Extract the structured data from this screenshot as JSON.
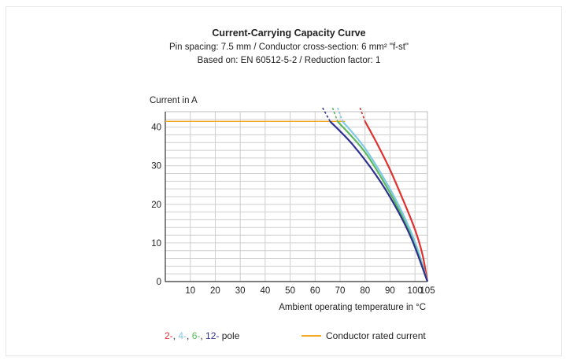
{
  "chart_data": {
    "type": "line",
    "title": "Current-Carrying Capacity Curve",
    "subtitle_lines": [
      "Pin spacing: 7.5 mm / Conductor cross-section: 6 mm² \"f-st\"",
      "Based on: EN 60512-5-2 / Reduction factor: 1"
    ],
    "ylabel": "Current in A",
    "xlabel": "Ambient operating temperature in °C",
    "xlim": [
      0,
      105
    ],
    "ylim": [
      0,
      44
    ],
    "xticks": [
      10,
      20,
      30,
      40,
      50,
      60,
      70,
      80,
      90,
      100,
      105
    ],
    "yticks": [
      0,
      10,
      20,
      30,
      40
    ],
    "grid": true,
    "rated_current": {
      "name": "Conductor rated current",
      "value": 41.5,
      "color": "#f5a623"
    },
    "series": [
      {
        "label": "2-",
        "color": "#e0312e",
        "solid": [
          [
            80,
            41.5
          ],
          [
            85,
            35.5
          ],
          [
            90,
            29
          ],
          [
            95,
            21.5
          ],
          [
            100,
            13.5
          ],
          [
            103,
            7
          ],
          [
            105,
            0
          ]
        ],
        "dashed": [
          [
            78,
            45
          ],
          [
            80,
            41.5
          ]
        ]
      },
      {
        "label": "4-",
        "color": "#7fc8e8",
        "solid": [
          [
            71,
            41.5
          ],
          [
            80,
            34.5
          ],
          [
            90,
            24
          ],
          [
            97,
            15
          ],
          [
            101,
            8.5
          ],
          [
            105,
            0
          ]
        ],
        "dashed": [
          [
            69,
            45
          ],
          [
            71,
            41.5
          ]
        ]
      },
      {
        "label": "6-",
        "color": "#5cb85c",
        "solid": [
          [
            69,
            41.5
          ],
          [
            80,
            33.5
          ],
          [
            90,
            23
          ],
          [
            97,
            14
          ],
          [
            101,
            7.5
          ],
          [
            105,
            0
          ]
        ],
        "dashed": [
          [
            67,
            45
          ],
          [
            69,
            41.5
          ]
        ]
      },
      {
        "label": "12-",
        "color": "#2e3192",
        "solid": [
          [
            66,
            41.5
          ],
          [
            75,
            35.5
          ],
          [
            85,
            27
          ],
          [
            93,
            18.5
          ],
          [
            99,
            10.5
          ],
          [
            105,
            0
          ]
        ],
        "dashed": [
          [
            63,
            45
          ],
          [
            66,
            41.5
          ]
        ]
      }
    ],
    "legend": {
      "pole_suffix": " pole",
      "separator": ", ",
      "placement": "bottom"
    }
  }
}
